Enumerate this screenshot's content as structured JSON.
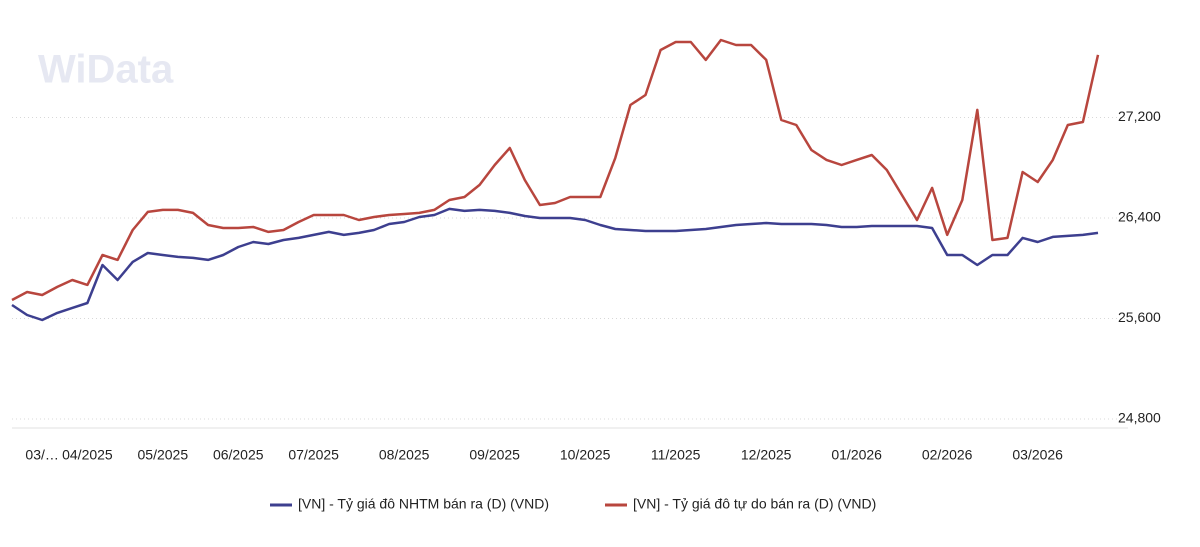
{
  "chart_data": {
    "type": "line",
    "watermark": "WiData",
    "categories": [
      null,
      null,
      "03/…",
      null,
      null,
      "04/2025",
      null,
      null,
      null,
      null,
      "05/2025",
      null,
      null,
      null,
      null,
      "06/2025",
      null,
      null,
      null,
      null,
      "07/2025",
      null,
      null,
      null,
      null,
      null,
      "08/2025",
      null,
      null,
      null,
      null,
      null,
      "09/2025",
      null,
      null,
      null,
      null,
      null,
      "10/2025",
      null,
      null,
      null,
      null,
      null,
      "11/2025",
      null,
      null,
      null,
      null,
      null,
      "12/2025",
      null,
      null,
      null,
      null,
      null,
      "01/2026",
      null,
      null,
      null,
      null,
      null,
      "02/2026",
      null,
      null,
      null,
      null,
      null,
      "03/2026",
      null,
      null,
      null,
      null
    ],
    "series": [
      {
        "name": "[VN] - Tỷ giá đô NHTM bán ra (D) (VND)",
        "color": "#3d3f8f",
        "values": [
          25707,
          25628,
          25588,
          25644,
          25684,
          25723,
          26026,
          25906,
          26050,
          26121,
          26105,
          26090,
          26082,
          26066,
          26105,
          26169,
          26209,
          26193,
          26225,
          26241,
          26265,
          26289,
          26265,
          26281,
          26304,
          26352,
          26368,
          26408,
          26424,
          26472,
          26456,
          26464,
          26456,
          26440,
          26416,
          26400,
          26400,
          26400,
          26384,
          26344,
          26312,
          26304,
          26296,
          26296,
          26296,
          26304,
          26312,
          26328,
          26344,
          26352,
          26360,
          26352,
          26352,
          26352,
          26344,
          26328,
          26328,
          26336,
          26336,
          26336,
          26336,
          26320,
          26105,
          26105,
          26026,
          26105,
          26105,
          26241,
          26209,
          26249,
          26257,
          26265,
          26281
        ]
      },
      {
        "name": "[VN] - Tỷ giá đô tự do bán ra (D) (VND)",
        "color": "#b8463e",
        "values": [
          25747,
          25811,
          25787,
          25851,
          25906,
          25867,
          26105,
          26066,
          26304,
          26448,
          26464,
          26464,
          26440,
          26344,
          26320,
          26320,
          26328,
          26289,
          26304,
          26368,
          26424,
          26424,
          26424,
          26384,
          26408,
          26424,
          26432,
          26440,
          26464,
          26543,
          26567,
          26663,
          26822,
          26957,
          26702,
          26503,
          26519,
          26567,
          26567,
          26567,
          26878,
          27299,
          27379,
          27737,
          27801,
          27801,
          27658,
          27817,
          27777,
          27777,
          27658,
          27180,
          27140,
          26941,
          26862,
          26822,
          26862,
          26901,
          26782,
          26583,
          26384,
          26639,
          26265,
          26543,
          27260,
          26225,
          26241,
          26766,
          26686,
          26862,
          27140,
          27164,
          27698
        ]
      }
    ],
    "ylim": [
      24744,
      27960
    ],
    "yticks": [
      {
        "value": 24800,
        "label": "24,800"
      },
      {
        "value": 25600,
        "label": "25,600"
      },
      {
        "value": 26400,
        "label": "26,400"
      },
      {
        "value": 27200,
        "label": "27,200"
      }
    ],
    "grid": true,
    "legend": "bottom"
  }
}
